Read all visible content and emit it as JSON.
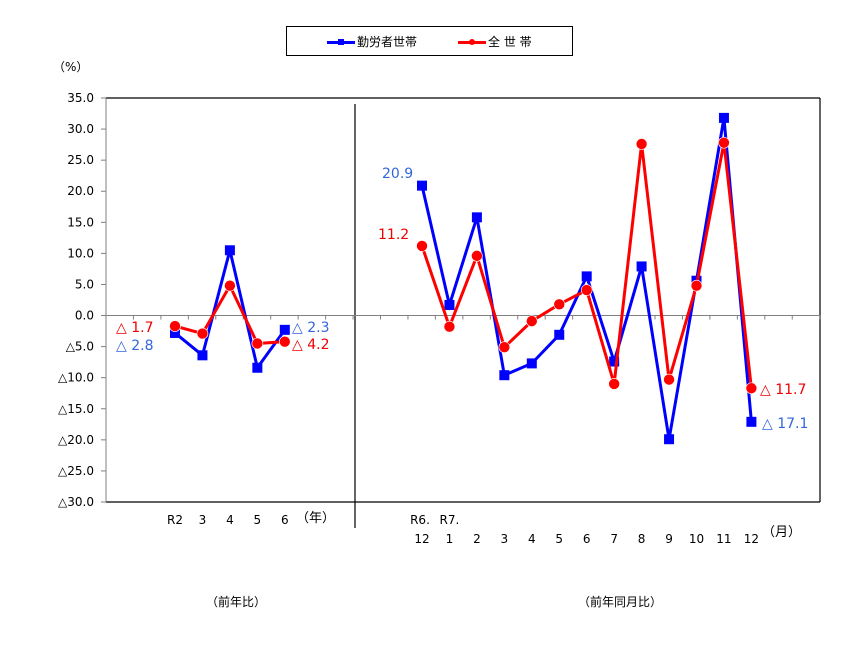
{
  "legend": {
    "workers_label": "勤労者世帯",
    "all_label": "全 世 帯"
  },
  "axis": {
    "y_unit": "（%）",
    "annual_unit": "（年）",
    "monthly_unit": "（月）"
  },
  "sections": {
    "annual": "（前年比）",
    "monthly": "（前年同月比）"
  },
  "colors": {
    "workers": "#0000FF",
    "all": "#FF0000",
    "workers_label": "#3366DD",
    "all_label": "#EE0000",
    "axis": "#808080"
  },
  "chart_data": {
    "type": "line",
    "title": "",
    "ylabel": "（%）",
    "ylim": [
      -30,
      35
    ],
    "y_ticks": [
      "35.0",
      "30.0",
      "25.0",
      "20.0",
      "15.0",
      "10.0",
      "5.0",
      "0.0",
      "△5.0",
      "△10.0",
      "△15.0",
      "△20.0",
      "△25.0",
      "△30.0"
    ],
    "legend_position": "top",
    "grid": false,
    "panels": [
      {
        "name": "前年比",
        "xlabel": "（年）",
        "categories": [
          "R2",
          "3",
          "4",
          "5",
          "6"
        ],
        "series": [
          {
            "name": "勤労者世帯",
            "values": [
              -2.8,
              -6.4,
              10.5,
              -8.4,
              -2.3
            ]
          },
          {
            "name": "全 世 帯",
            "values": [
              -1.7,
              -2.9,
              4.8,
              -4.5,
              -4.2
            ]
          }
        ],
        "annotations": [
          {
            "series": "全 世 帯",
            "text": "△ 1.7",
            "at": "R2"
          },
          {
            "series": "勤労者世帯",
            "text": "△ 2.8",
            "at": "R2"
          },
          {
            "series": "勤労者世帯",
            "text": "△ 2.3",
            "at": "6"
          },
          {
            "series": "全 世 帯",
            "text": "△ 4.2",
            "at": "6"
          }
        ]
      },
      {
        "name": "前年同月比",
        "xlabel": "（月）",
        "categories": [
          "R6.12",
          "R7.1",
          "2",
          "3",
          "4",
          "5",
          "6",
          "7",
          "8",
          "9",
          "10",
          "11",
          "12"
        ],
        "category_lines": [
          [
            "R6.",
            "12"
          ],
          [
            "R7.",
            "1"
          ],
          [
            "",
            "2"
          ],
          [
            "",
            "3"
          ],
          [
            "",
            "4"
          ],
          [
            "",
            "5"
          ],
          [
            "",
            "6"
          ],
          [
            "",
            "7"
          ],
          [
            "",
            "8"
          ],
          [
            "",
            "9"
          ],
          [
            "",
            "10"
          ],
          [
            "",
            "11"
          ],
          [
            "",
            "12"
          ]
        ],
        "series": [
          {
            "name": "勤労者世帯",
            "values": [
              20.9,
              1.7,
              15.8,
              -9.6,
              -7.7,
              -3.1,
              6.3,
              -7.4,
              7.9,
              -19.9,
              5.6,
              31.8,
              -17.1
            ]
          },
          {
            "name": "全 世 帯",
            "values": [
              11.2,
              -1.8,
              9.6,
              -5.1,
              -0.9,
              1.8,
              4.1,
              -11.0,
              27.6,
              -10.3,
              4.8,
              27.8,
              -11.7
            ]
          }
        ],
        "annotations": [
          {
            "series": "勤労者世帯",
            "text": "20.9",
            "at": "R6.12"
          },
          {
            "series": "全 世 帯",
            "text": "11.2",
            "at": "R6.12"
          },
          {
            "series": "全 世 帯",
            "text": "△ 11.7",
            "at": "12"
          },
          {
            "series": "勤労者世帯",
            "text": "△ 17.1",
            "at": "12"
          }
        ]
      }
    ]
  }
}
